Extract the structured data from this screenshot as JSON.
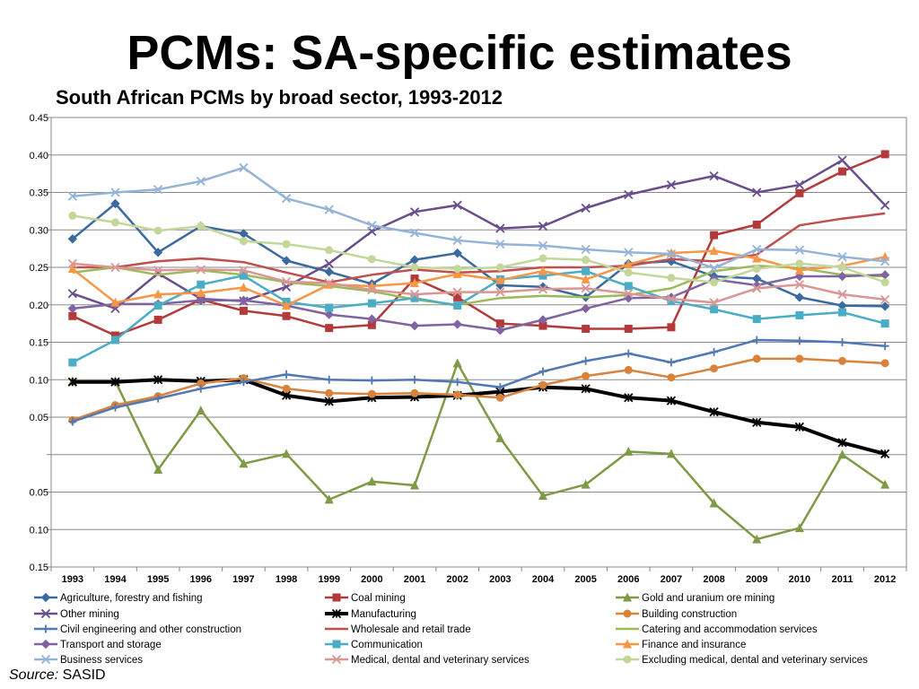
{
  "page": {
    "title": "PCMs: SA-specific estimates",
    "source_label": "Source:",
    "source_value": "SASID"
  },
  "chart_data": {
    "type": "line",
    "title": "South African PCMs by broad sector, 1993-2012",
    "xlabel": "",
    "ylabel": "",
    "ylim": [
      -0.15,
      0.45
    ],
    "yticks": [
      -0.15,
      -0.1,
      -0.05,
      0,
      0.05,
      0.1,
      0.15,
      0.2,
      0.25,
      0.3,
      0.35,
      0.4,
      0.45
    ],
    "ytick_labels": [
      "0.15",
      "0.10",
      "0.05",
      "",
      "0.05",
      "0.10",
      "0.15",
      "0.20",
      "0.25",
      "0.30",
      "0.35",
      "0.40",
      "0.45"
    ],
    "grid": true,
    "legend_position": "bottom",
    "categories": [
      "1993",
      "1994",
      "1995",
      "1996",
      "1997",
      "1998",
      "1999",
      "2000",
      "2001",
      "2002",
      "2003",
      "2004",
      "2005",
      "2006",
      "2007",
      "2008",
      "2009",
      "2010",
      "2011",
      "2012"
    ],
    "series": [
      {
        "name": "Agriculture, forestry and fishing",
        "color": "#3b6aa0",
        "marker": "diamond",
        "width": 2.5,
        "values": [
          0.288,
          0.335,
          0.27,
          0.305,
          0.295,
          0.259,
          0.244,
          0.228,
          0.26,
          0.269,
          0.226,
          0.224,
          0.21,
          0.255,
          0.258,
          0.238,
          0.235,
          0.21,
          0.199,
          0.198
        ]
      },
      {
        "name": "Coal mining",
        "color": "#b23a3a",
        "marker": "square",
        "width": 2.5,
        "values": [
          0.185,
          0.159,
          0.18,
          0.207,
          0.192,
          0.185,
          0.169,
          0.173,
          0.235,
          0.21,
          0.175,
          0.172,
          0.168,
          0.168,
          0.17,
          0.293,
          0.307,
          0.349,
          0.378,
          0.401
        ]
      },
      {
        "name": "Gold and uranium ore mining",
        "color": "#7f9a46",
        "marker": "triangle",
        "width": 2.5,
        "values": [
          0.098,
          0.098,
          -0.02,
          0.059,
          -0.012,
          0.001,
          -0.06,
          -0.036,
          -0.041,
          0.122,
          0.022,
          -0.055,
          -0.04,
          0.004,
          0.001,
          -0.065,
          -0.113,
          -0.098,
          0.0,
          -0.04
        ]
      },
      {
        "name": "Other mining",
        "color": "#6a4d8c",
        "marker": "x",
        "width": 2.5,
        "values": [
          0.215,
          0.195,
          0.242,
          0.208,
          0.205,
          0.224,
          0.255,
          0.298,
          0.324,
          0.333,
          0.302,
          0.305,
          0.329,
          0.347,
          0.36,
          0.372,
          0.35,
          0.36,
          0.393,
          0.333
        ]
      },
      {
        "name": "Manufacturing",
        "color": "#000000",
        "marker": "star",
        "width": 4,
        "values": [
          0.097,
          0.097,
          0.1,
          0.098,
          0.1,
          0.079,
          0.071,
          0.076,
          0.077,
          0.079,
          0.084,
          0.09,
          0.088,
          0.076,
          0.072,
          0.057,
          0.043,
          0.037,
          0.016,
          0.001
        ]
      },
      {
        "name": "Building construction",
        "color": "#d9823b",
        "marker": "circle",
        "width": 2.5,
        "values": [
          0.046,
          0.066,
          0.078,
          0.095,
          0.102,
          0.088,
          0.082,
          0.081,
          0.082,
          0.08,
          0.076,
          0.093,
          0.105,
          0.113,
          0.103,
          0.115,
          0.128,
          0.128,
          0.125,
          0.122
        ]
      },
      {
        "name": "Civil engineering and other construction",
        "color": "#5078b4",
        "marker": "plus",
        "width": 2.5,
        "values": [
          0.044,
          0.063,
          0.075,
          0.088,
          0.097,
          0.107,
          0.1,
          0.099,
          0.1,
          0.097,
          0.09,
          0.111,
          0.125,
          0.135,
          0.123,
          0.137,
          0.153,
          0.152,
          0.15,
          0.145
        ]
      },
      {
        "name": "Wholesale and retail trade",
        "color": "#c0504d",
        "marker": "none",
        "width": 2.5,
        "values": [
          0.25,
          0.25,
          0.258,
          0.262,
          0.257,
          0.243,
          0.23,
          0.24,
          0.247,
          0.243,
          0.245,
          0.25,
          0.25,
          0.252,
          0.261,
          0.258,
          0.267,
          0.306,
          0.315,
          0.322
        ]
      },
      {
        "name": "Catering and accommodation services",
        "color": "#9bbb59",
        "marker": "none",
        "width": 2.5,
        "values": [
          0.243,
          0.25,
          0.24,
          0.246,
          0.24,
          0.23,
          0.225,
          0.218,
          0.207,
          0.2,
          0.209,
          0.212,
          0.21,
          0.213,
          0.222,
          0.245,
          0.252,
          0.249,
          0.24,
          0.238
        ]
      },
      {
        "name": "Transport and storage",
        "color": "#8064a2",
        "marker": "diamond",
        "width": 2.5,
        "values": [
          0.195,
          0.201,
          0.201,
          0.206,
          0.206,
          0.199,
          0.187,
          0.181,
          0.172,
          0.174,
          0.166,
          0.18,
          0.195,
          0.209,
          0.21,
          0.234,
          0.226,
          0.238,
          0.238,
          0.24
        ]
      },
      {
        "name": "Communication",
        "color": "#4bacc6",
        "marker": "square",
        "width": 2.5,
        "values": [
          0.123,
          0.153,
          0.199,
          0.227,
          0.239,
          0.204,
          0.196,
          0.202,
          0.209,
          0.199,
          0.234,
          0.239,
          0.245,
          0.225,
          0.205,
          0.194,
          0.181,
          0.186,
          0.19,
          0.175
        ]
      },
      {
        "name": "Finance and insurance",
        "color": "#f79646",
        "marker": "triangle",
        "width": 2.5,
        "values": [
          0.248,
          0.203,
          0.214,
          0.216,
          0.223,
          0.199,
          0.227,
          0.225,
          0.229,
          0.241,
          0.233,
          0.245,
          0.234,
          0.254,
          0.269,
          0.272,
          0.262,
          0.246,
          0.252,
          0.264
        ]
      },
      {
        "name": "Business services",
        "color": "#95b3d7",
        "marker": "x",
        "width": 2.5,
        "values": [
          0.345,
          0.35,
          0.354,
          0.365,
          0.383,
          0.342,
          0.327,
          0.306,
          0.296,
          0.286,
          0.281,
          0.279,
          0.274,
          0.27,
          0.268,
          0.249,
          0.274,
          0.273,
          0.264,
          0.258
        ]
      },
      {
        "name": "Medical, dental and veterinary services",
        "color": "#d99694",
        "marker": "x",
        "width": 2.5,
        "values": [
          0.255,
          0.25,
          0.246,
          0.247,
          0.246,
          0.231,
          0.229,
          0.22,
          0.214,
          0.217,
          0.217,
          0.221,
          0.222,
          0.215,
          0.208,
          0.203,
          0.222,
          0.227,
          0.214,
          0.207
        ]
      },
      {
        "name": "Excluding medical, dental and veterinary services",
        "color": "#c4d79b",
        "marker": "circle",
        "width": 2.5,
        "values": [
          0.319,
          0.31,
          0.299,
          0.305,
          0.285,
          0.281,
          0.273,
          0.261,
          0.25,
          0.248,
          0.25,
          0.262,
          0.26,
          0.243,
          0.236,
          0.23,
          0.248,
          0.255,
          0.25,
          0.23
        ]
      }
    ]
  }
}
